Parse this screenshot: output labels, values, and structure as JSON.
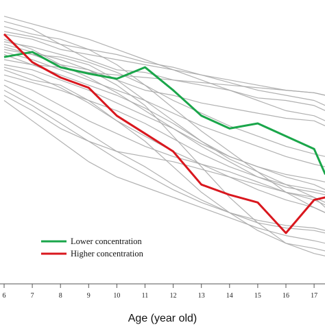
{
  "chart_data": {
    "type": "line",
    "title": "",
    "xlabel": "Age (year old)",
    "ylabel": "",
    "x": [
      6,
      7,
      8,
      9,
      10,
      11,
      12,
      13,
      14,
      15,
      16,
      17,
      17.4
    ],
    "x_ticks": [
      "6",
      "7",
      "8",
      "9",
      "10",
      "11",
      "12",
      "13",
      "14",
      "15",
      "16",
      "17"
    ],
    "xlim": [
      6,
      17.4
    ],
    "ylim": [
      0,
      100
    ],
    "grid": false,
    "legend_position": "bottom-left",
    "series": [
      {
        "name": "Lower concentration",
        "color": "#1aa64a",
        "values": [
          83,
          85,
          79,
          76.5,
          74.5,
          79,
          70,
          60,
          55,
          57,
          52,
          47,
          37
        ]
      },
      {
        "name": "Higher concentration",
        "color": "#d9171e",
        "values": [
          92,
          81,
          75,
          71,
          60,
          53,
          46,
          33,
          29,
          26,
          14,
          27,
          28
        ]
      }
    ],
    "background_series_color": "#a8a8a8",
    "background_series": [
      [
        97,
        94,
        88,
        82,
        78,
        77,
        74,
        72,
        70,
        67,
        66,
        64,
        62
      ],
      [
        90,
        86,
        80,
        78,
        74,
        70,
        68,
        65,
        63,
        61,
        59,
        58,
        56
      ],
      [
        86,
        84,
        83,
        80,
        74,
        66,
        58,
        50,
        43,
        38,
        33,
        28,
        24
      ],
      [
        80,
        78,
        74,
        70,
        65,
        60,
        55,
        48,
        42,
        36,
        32,
        30,
        29
      ],
      [
        74,
        70,
        64,
        58,
        53,
        48,
        44,
        41,
        38,
        34,
        30,
        27,
        25
      ],
      [
        68,
        62,
        55,
        50,
        46,
        44,
        42,
        39,
        36,
        33,
        30,
        28,
        26
      ],
      [
        88,
        85,
        82,
        78,
        72,
        64,
        52,
        40,
        28,
        18,
        10,
        6,
        5
      ],
      [
        84,
        80,
        76,
        72,
        68,
        63,
        57,
        50,
        44,
        40,
        36,
        33,
        31
      ],
      [
        78,
        74,
        72,
        66,
        58,
        50,
        40,
        30,
        22,
        15,
        10,
        8,
        7
      ],
      [
        92,
        90,
        86,
        84,
        82,
        80,
        78,
        76,
        73,
        70,
        68,
        66,
        64
      ],
      [
        72,
        66,
        60,
        53,
        46,
        40,
        33,
        27,
        22,
        18,
        16,
        15,
        14
      ],
      [
        82,
        80,
        79,
        77,
        76,
        75,
        74,
        73,
        72,
        71,
        70,
        69,
        68
      ],
      [
        95,
        92,
        90,
        86,
        80,
        72,
        63,
        54,
        46,
        38,
        30,
        24,
        22
      ],
      [
        66,
        58,
        50,
        42,
        36,
        32,
        28,
        24,
        20,
        16,
        13,
        11,
        10
      ],
      [
        89,
        87,
        84,
        81,
        77,
        72,
        66,
        61,
        56,
        52,
        48,
        45,
        44
      ],
      [
        76,
        73,
        70,
        66,
        62,
        57,
        51,
        45,
        40,
        36,
        33,
        31,
        30
      ],
      [
        99,
        96,
        93,
        90,
        86,
        82,
        78,
        74,
        70,
        66,
        62,
        60,
        58
      ],
      [
        70,
        64,
        57,
        50,
        43,
        37,
        31,
        26,
        22,
        19,
        17,
        16,
        15
      ],
      [
        85,
        82,
        78,
        74,
        70,
        66,
        61,
        56,
        52,
        48,
        44,
        41,
        40
      ],
      [
        93,
        91,
        88,
        86,
        84,
        81,
        79,
        76,
        74,
        72,
        70,
        69,
        68
      ],
      [
        79,
        76,
        71,
        65,
        58,
        52,
        46,
        41,
        36,
        31,
        27,
        24,
        22
      ],
      [
        87,
        84,
        80,
        75,
        69,
        62,
        55,
        49,
        44,
        40,
        37,
        35,
        34
      ]
    ]
  }
}
